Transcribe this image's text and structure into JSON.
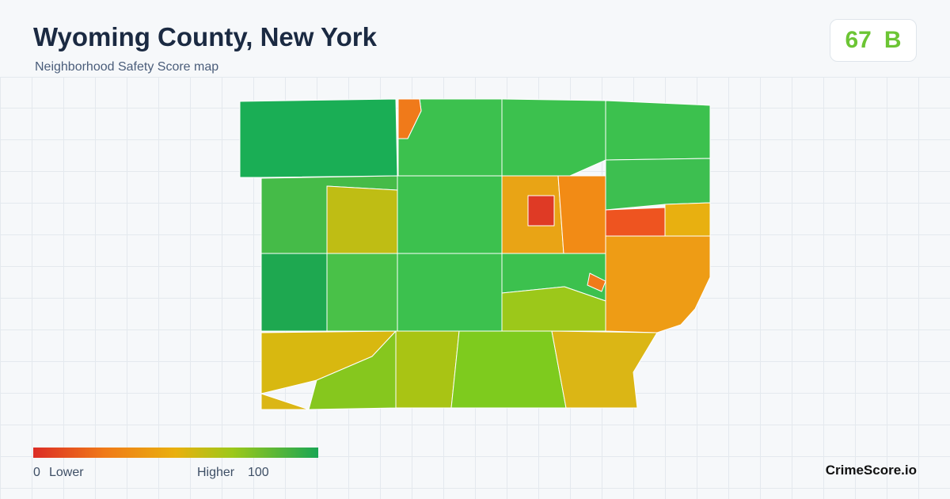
{
  "header": {
    "title": "Wyoming County, New York",
    "subtitle": "Neighborhood Safety Score map"
  },
  "score": {
    "value": 67,
    "grade": "B"
  },
  "legend": {
    "min": 0,
    "min_label": "Lower",
    "max_label": "Higher",
    "max": 100
  },
  "brand": "CrimeScore.io"
}
